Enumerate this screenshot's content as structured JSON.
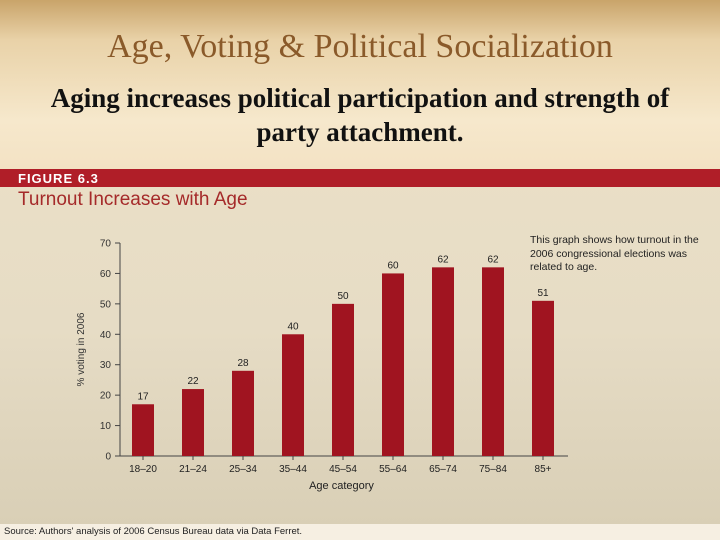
{
  "slide": {
    "title": "Age, Voting & Political Socialization",
    "subtitle": "Aging increases political participation and strength of party attachment."
  },
  "figure": {
    "label": "FIGURE 6.3",
    "title": "Turnout Increases with Age",
    "annotation": "This graph shows how turnout in the 2006 congressional elections was related to age.",
    "source": "Source: Authors' analysis of 2006 Census Bureau data via Data Ferret."
  },
  "colors": {
    "bar": "#a01420",
    "band": "#b01e28",
    "title_accent": "#8a5a2a"
  },
  "chart_data": {
    "type": "bar",
    "title": "Turnout Increases with Age",
    "xlabel": "Age category",
    "ylabel": "% voting in 2006",
    "categories": [
      "18–20",
      "21–24",
      "25–34",
      "35–44",
      "45–54",
      "55–64",
      "65–74",
      "75–84",
      "85+"
    ],
    "values": [
      17,
      22,
      28,
      40,
      50,
      60,
      62,
      62,
      51
    ],
    "ylim": [
      0,
      70
    ],
    "yticks": [
      0,
      10,
      20,
      30,
      40,
      50,
      60,
      70
    ],
    "data_labels": true,
    "grid": false
  }
}
